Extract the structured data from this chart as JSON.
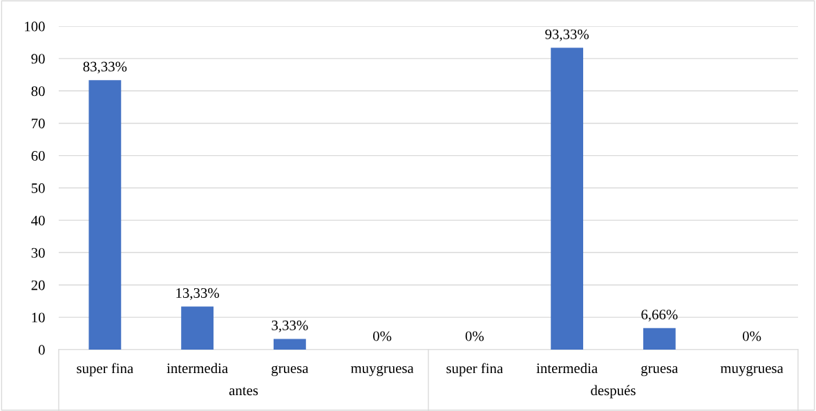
{
  "chart_data": {
    "type": "bar",
    "categories": [
      "super fina",
      "intermedia",
      "gruesa",
      "muygruesa",
      "super fina",
      "intermedia",
      "gruesa",
      "muygruesa"
    ],
    "values": [
      83.33,
      13.33,
      3.33,
      0,
      0,
      93.33,
      6.66,
      0
    ],
    "value_labels": [
      "83,33%",
      "13,33%",
      "3,33%",
      "0%",
      "0%",
      "93,33%",
      "6,66%",
      "0%"
    ],
    "color": "#4472c4",
    "ylim": [
      0,
      100
    ],
    "yticks": [
      0,
      10,
      20,
      30,
      40,
      50,
      60,
      70,
      80,
      90,
      100
    ],
    "grid": "y",
    "annotations": [
      "antes",
      "después"
    ]
  }
}
